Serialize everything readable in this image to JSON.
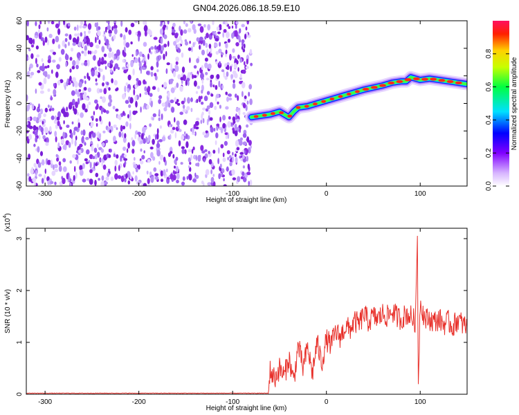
{
  "page_title": "GN04.2026.086.18.59.E10",
  "colors": {
    "noise": "#8a2be2",
    "snr_line": "#e8302a",
    "axis": "#000000"
  },
  "chart_data": [
    {
      "type": "heatmap",
      "title": "GN04.2026.086.18.59.E10",
      "xlabel": "Height of straight line (km)",
      "ylabel": "Frequency (Hz)",
      "xlim": [
        -320,
        150
      ],
      "ylim": [
        -60,
        60
      ],
      "xticks": [
        -300,
        -200,
        -100,
        0,
        100
      ],
      "yticks": [
        -60,
        -40,
        -20,
        0,
        20,
        40,
        60
      ],
      "noise_region_x": [
        -320,
        -80
      ],
      "signal_track": {
        "x": [
          -80,
          -70,
          -60,
          -50,
          -45,
          -40,
          -35,
          -30,
          -20,
          -10,
          0,
          10,
          20,
          30,
          40,
          50,
          60,
          70,
          80,
          85,
          90,
          95,
          100,
          110,
          120,
          130,
          140,
          150
        ],
        "frequency": [
          -10,
          -9,
          -8,
          -6,
          -8,
          -10,
          -6,
          -3,
          -2,
          0,
          2,
          4,
          6,
          8,
          10,
          11.5,
          13,
          15,
          16,
          16,
          19,
          18,
          17,
          18,
          17,
          16,
          15,
          14
        ]
      },
      "colorbar": {
        "label": "Normalized spectral amplitude",
        "range": [
          0,
          1
        ],
        "ticks": [
          0.0,
          0.2,
          0.4,
          0.6,
          0.8
        ],
        "tick_labels": [
          "0.0",
          "0.2",
          "0.4",
          "0.6",
          "0.8"
        ]
      }
    },
    {
      "type": "line",
      "xlabel": "Height of straight line (km)",
      "ylabel": "SNR (10 * v/v)",
      "scale_label": "(x10",
      "scale_exponent": "4",
      "xlim": [
        -320,
        150
      ],
      "ylim": [
        0,
        3.2
      ],
      "xticks": [
        -300,
        -200,
        -100,
        0,
        100
      ],
      "yticks": [
        0,
        1,
        2,
        3
      ],
      "series": [
        {
          "x": [
            -320,
            -62,
            -60,
            -55,
            -50,
            -45,
            -40,
            -35,
            -30,
            -25,
            -20,
            -15,
            -10,
            -5,
            0,
            5,
            10,
            15,
            20,
            25,
            30,
            35,
            40,
            45,
            50,
            55,
            60,
            65,
            70,
            75,
            80,
            85,
            90,
            95,
            97,
            98,
            100,
            105,
            110,
            115,
            120,
            125,
            130,
            135,
            140,
            145,
            150
          ],
          "values": [
            0.02,
            0.02,
            0.45,
            0.3,
            0.5,
            0.35,
            0.7,
            0.25,
            0.95,
            0.5,
            0.9,
            0.4,
            1.0,
            0.6,
            1.05,
            0.95,
            1.2,
            1.1,
            1.3,
            1.25,
            1.4,
            1.35,
            1.55,
            1.4,
            1.5,
            1.45,
            1.55,
            1.5,
            1.6,
            1.5,
            1.45,
            1.55,
            1.5,
            1.4,
            3.1,
            0.2,
            1.8,
            1.45,
            1.45,
            1.4,
            1.45,
            1.35,
            1.4,
            1.3,
            1.45,
            1.35,
            1.3
          ]
        }
      ]
    }
  ]
}
